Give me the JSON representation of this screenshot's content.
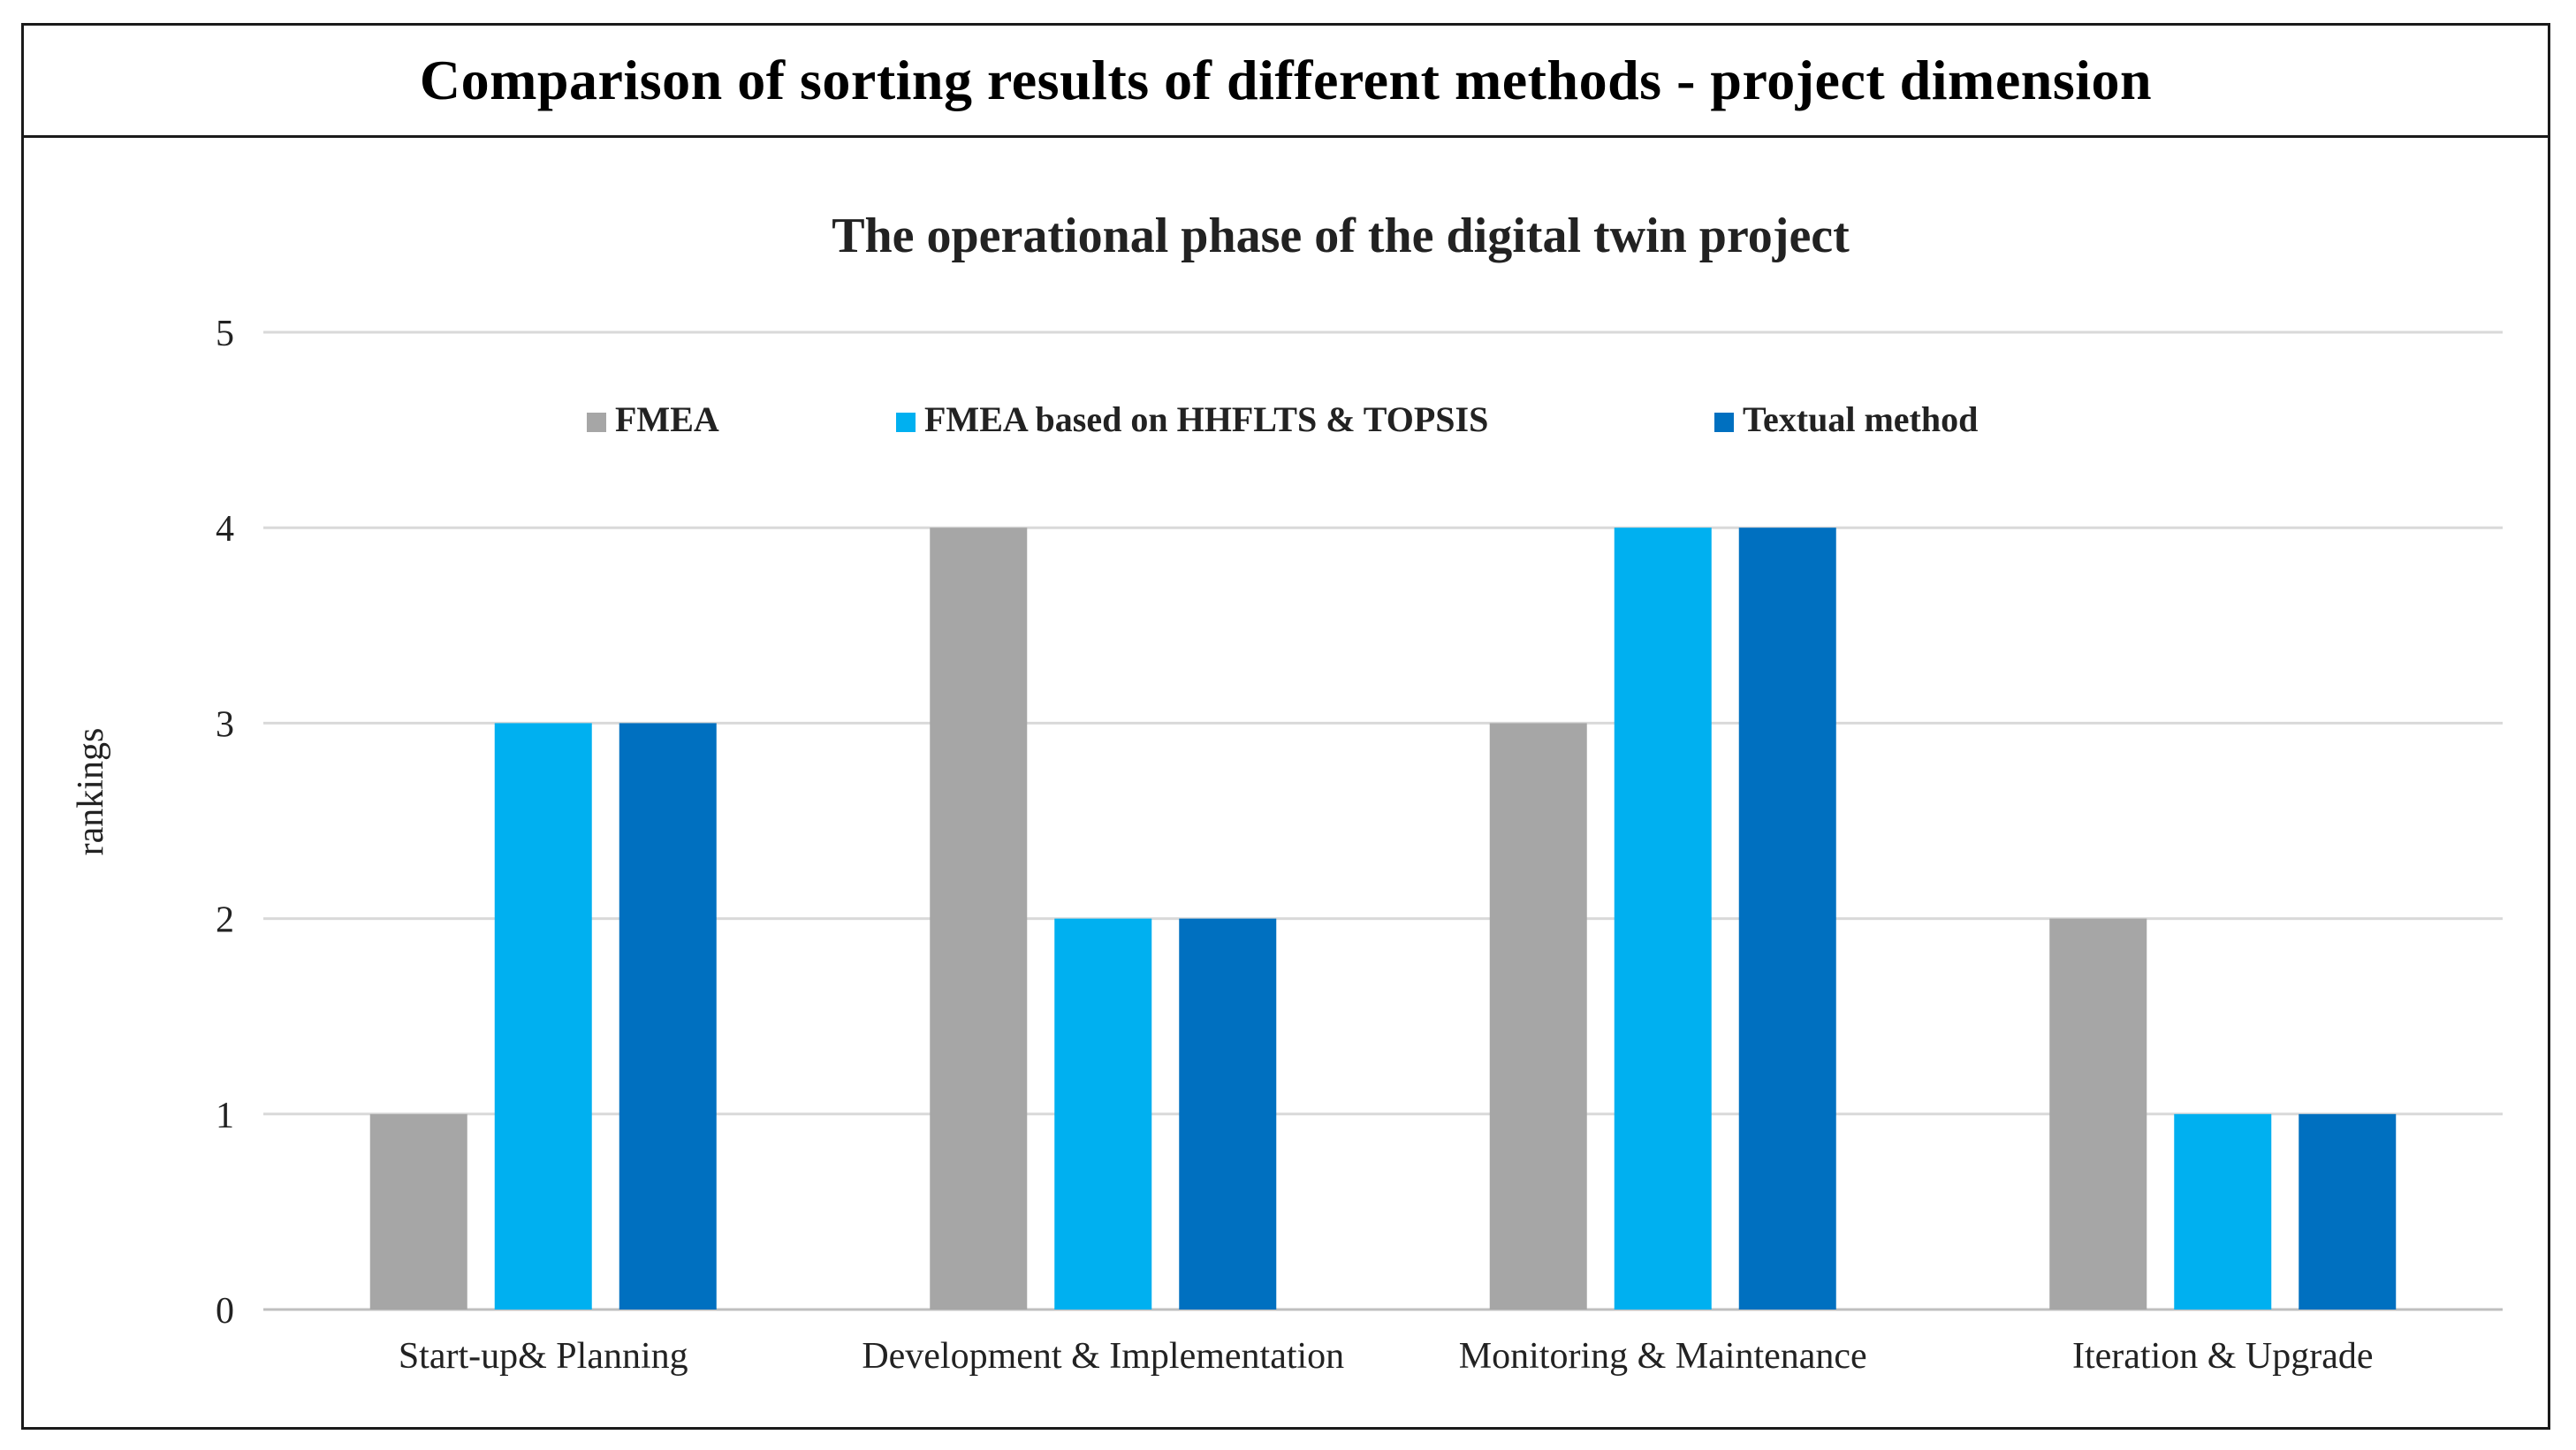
{
  "header": {
    "title": "Comparison of sorting results of different methods - project dimension"
  },
  "chart_data": {
    "type": "bar",
    "title": "The operational phase of the digital twin project",
    "xlabel": "",
    "ylabel": "rankings",
    "ylim": [
      0,
      5
    ],
    "yticks": [
      0,
      1,
      2,
      3,
      4,
      5
    ],
    "grid": true,
    "legend_position": "top",
    "categories": [
      "Start-up& Planning",
      "Development & Implementation",
      "Monitoring & Maintenance",
      "Iteration & Upgrade"
    ],
    "series": [
      {
        "name": "FMEA",
        "color": "#a6a6a6",
        "values": [
          1,
          4,
          3,
          2
        ]
      },
      {
        "name": "FMEA based on HHFLTS & TOPSIS",
        "color": "#00b0f0",
        "values": [
          3,
          2,
          4,
          1
        ]
      },
      {
        "name": "Textual method",
        "color": "#0070c0",
        "values": [
          3,
          2,
          4,
          1
        ]
      }
    ]
  }
}
